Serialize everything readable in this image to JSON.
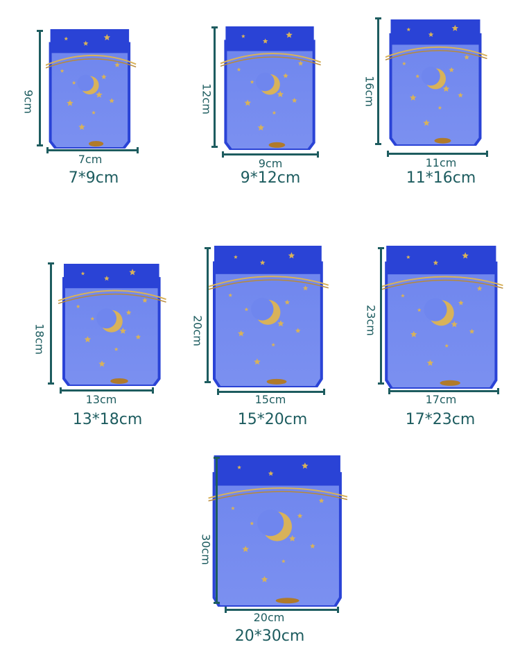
{
  "colors": {
    "bag": "#2a43d6",
    "bag_light": "#6f86ee",
    "gold": "#d8b25a",
    "measure": "#1d5c5f"
  },
  "items": [
    {
      "height_label": "9cm",
      "width_label": "7cm",
      "caption": "7*9cm"
    },
    {
      "height_label": "12cm",
      "width_label": "9cm",
      "caption": "9*12cm"
    },
    {
      "height_label": "16cm",
      "width_label": "11cm",
      "caption": "11*16cm"
    },
    {
      "height_label": "18cm",
      "width_label": "13cm",
      "caption": "13*18cm"
    },
    {
      "height_label": "20cm",
      "width_label": "15cm",
      "caption": "15*20cm"
    },
    {
      "height_label": "23cm",
      "width_label": "17cm",
      "caption": "17*23cm"
    },
    {
      "height_label": "30cm",
      "width_label": "20cm",
      "caption": "20*30cm"
    }
  ]
}
